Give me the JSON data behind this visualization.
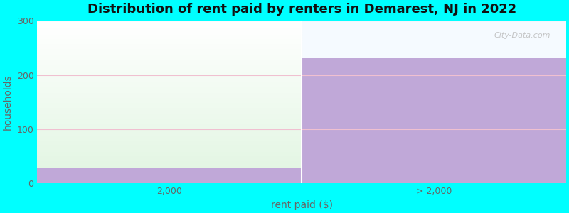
{
  "title": "Distribution of rent paid by renters in Demarest, NJ in 2022",
  "categories": [
    "2,000",
    "> 2,000"
  ],
  "values": [
    30,
    232
  ],
  "bar_color": "#c0a8d8",
  "left_bg_color_top": "#e8f5e8",
  "left_bg_color_bottom": "#d0f0d0",
  "plot_bg_color": "#f5faff",
  "figure_bg_color": "#00ffff",
  "ylabel": "households",
  "xlabel": "rent paid ($)",
  "ylim": [
    0,
    300
  ],
  "yticks": [
    0,
    100,
    200,
    300
  ],
  "grid_color": "#f0c0d0",
  "title_fontsize": 13,
  "axis_label_fontsize": 10,
  "tick_fontsize": 9,
  "tick_color": "#666666",
  "label_color": "#666666",
  "title_color": "#111111",
  "watermark": "City-Data.com"
}
